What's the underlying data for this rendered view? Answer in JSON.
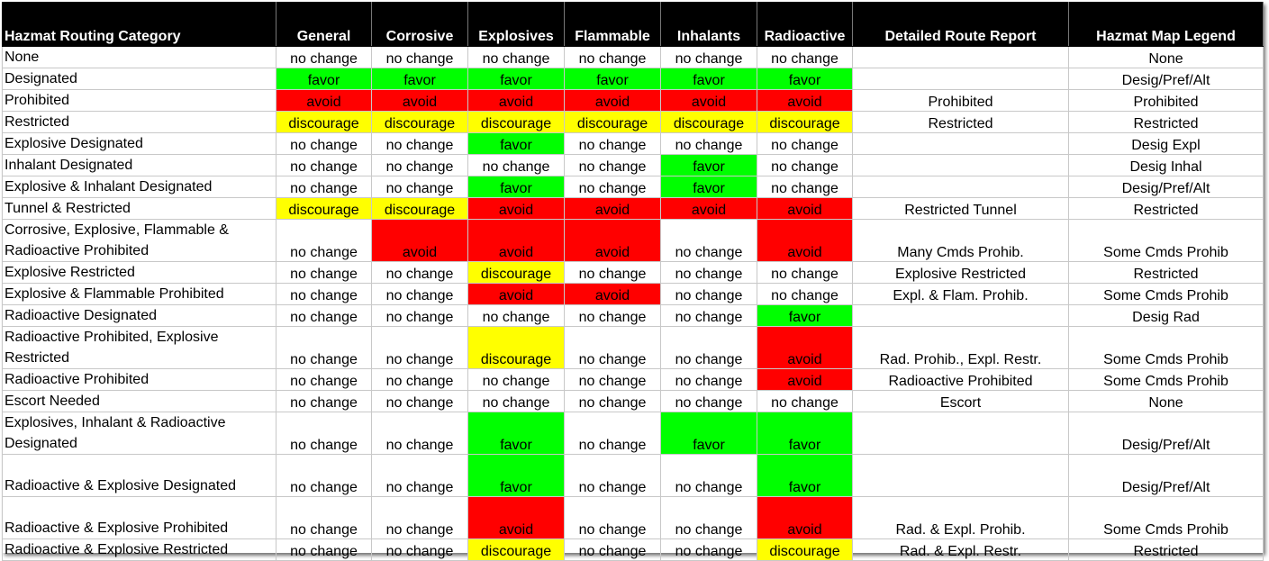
{
  "headers": [
    "Hazmat Routing Category",
    "General",
    "Corrosive",
    "Explosives",
    "Flammable",
    "Inhalants",
    "Radioactive",
    "Detailed Route Report",
    "Hazmat Map Legend"
  ],
  "colors": {
    "favor": "#00ff00",
    "avoid": "#ff0000",
    "discourage": "#ffff00",
    "header_bg": "#000000"
  },
  "rows": [
    {
      "category": "None",
      "values": [
        "no change",
        "no change",
        "no change",
        "no change",
        "no change",
        "no change"
      ],
      "report": "",
      "legend": "None"
    },
    {
      "category": "Designated",
      "values": [
        "favor",
        "favor",
        "favor",
        "favor",
        "favor",
        "favor"
      ],
      "report": "",
      "legend": "Desig/Pref/Alt"
    },
    {
      "category": "Prohibited",
      "values": [
        "avoid",
        "avoid",
        "avoid",
        "avoid",
        "avoid",
        "avoid"
      ],
      "report": "Prohibited",
      "legend": "Prohibited"
    },
    {
      "category": "Restricted",
      "values": [
        "discourage",
        "discourage",
        "discourage",
        "discourage",
        "discourage",
        "discourage"
      ],
      "report": "Restricted",
      "legend": "Restricted"
    },
    {
      "category": "Explosive Designated",
      "values": [
        "no change",
        "no change",
        "favor",
        "no change",
        "no change",
        "no change"
      ],
      "report": "",
      "legend": "Desig Expl"
    },
    {
      "category": "Inhalant Designated",
      "values": [
        "no change",
        "no change",
        "no change",
        "no change",
        "favor",
        "no change"
      ],
      "report": "",
      "legend": "Desig Inhal"
    },
    {
      "category": "Explosive & Inhalant Designated",
      "values": [
        "no change",
        "no change",
        "favor",
        "no change",
        "favor",
        "no change"
      ],
      "report": "",
      "legend": "Desig/Pref/Alt"
    },
    {
      "category": "Tunnel & Restricted",
      "values": [
        "discourage",
        "discourage",
        "avoid",
        "avoid",
        "avoid",
        "avoid"
      ],
      "report": "Restricted Tunnel",
      "legend": "Restricted"
    },
    {
      "category": "Corrosive, Explosive, Flammable & Radioactive Prohibited",
      "values": [
        "no change",
        "avoid",
        "avoid",
        "avoid",
        "no change",
        "avoid"
      ],
      "report": "Many Cmds Prohib.",
      "legend": "Some Cmds Prohib",
      "tall": true
    },
    {
      "category": "Explosive Restricted",
      "values": [
        "no change",
        "no change",
        "discourage",
        "no change",
        "no change",
        "no change"
      ],
      "report": "Explosive Restricted",
      "legend": "Restricted"
    },
    {
      "category": "Explosive & Flammable Prohibited",
      "values": [
        "no change",
        "no change",
        "avoid",
        "avoid",
        "no change",
        "no change"
      ],
      "report": "Expl. & Flam. Prohib.",
      "legend": "Some Cmds Prohib"
    },
    {
      "category": "Radioactive Designated",
      "values": [
        "no change",
        "no change",
        "no change",
        "no change",
        "no change",
        "favor"
      ],
      "report": "",
      "legend": "Desig Rad"
    },
    {
      "category": "Radioactive Prohibited, Explosive Restricted",
      "values": [
        "no change",
        "no change",
        "discourage",
        "no change",
        "no change",
        "avoid"
      ],
      "report": "Rad. Prohib., Expl. Restr.",
      "legend": "Some Cmds Prohib",
      "tall": true
    },
    {
      "category": "Radioactive Prohibited",
      "values": [
        "no change",
        "no change",
        "no change",
        "no change",
        "no change",
        "avoid"
      ],
      "report": "Radioactive Prohibited",
      "legend": "Some Cmds Prohib"
    },
    {
      "category": "Escort Needed",
      "values": [
        "no change",
        "no change",
        "no change",
        "no change",
        "no change",
        "no change"
      ],
      "report": "Escort",
      "legend": "None"
    },
    {
      "category": "Explosives, Inhalant & Radioactive Designated",
      "values": [
        "no change",
        "no change",
        "favor",
        "no change",
        "favor",
        "favor"
      ],
      "report": "",
      "legend": "Desig/Pref/Alt",
      "tall": true
    },
    {
      "category": "Radioactive & Explosive Designated",
      "values": [
        "no change",
        "no change",
        "favor",
        "no change",
        "no change",
        "favor"
      ],
      "report": "",
      "legend": "Desig/Pref/Alt",
      "tall": true
    },
    {
      "category": "Radioactive & Explosive Prohibited",
      "values": [
        "no change",
        "no change",
        "avoid",
        "no change",
        "no change",
        "avoid"
      ],
      "report": "Rad. & Expl. Prohib.",
      "legend": "Some Cmds Prohib",
      "tall": true
    },
    {
      "category": "Radioactive & Explosive Restricted",
      "values": [
        "no change",
        "no change",
        "discourage",
        "no change",
        "no change",
        "discourage"
      ],
      "report": "Rad. & Expl. Restr.",
      "legend": "Restricted",
      "last": true
    }
  ]
}
